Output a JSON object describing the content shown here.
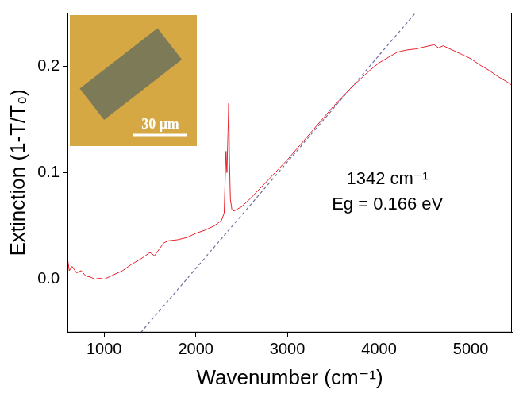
{
  "chart_data": {
    "type": "line",
    "x_label": "Wavenumber (cm⁻¹)",
    "y_label": "Extinction (1-T/T₀)",
    "xlim": [
      600,
      5450
    ],
    "ylim": [
      -0.05,
      0.25
    ],
    "xticks": [
      1000,
      2000,
      3000,
      4000,
      5000
    ],
    "yticks": [
      {
        "value": 0,
        "label": "0.0"
      },
      {
        "value": 0.1,
        "label": "0.1"
      },
      {
        "value": 0.2,
        "label": "0.2"
      }
    ],
    "grid": false,
    "annotations": [
      "1342 cm⁻¹",
      "Eg = 0.166 eV"
    ],
    "inset_scale_bar": "30 μm",
    "series": [
      {
        "color": "#e8212b",
        "line_style": "solid",
        "x": [
          600,
          620,
          650,
          700,
          750,
          800,
          850,
          900,
          950,
          1000,
          1050,
          1100,
          1200,
          1300,
          1400,
          1500,
          1550,
          1600,
          1650,
          1700,
          1800,
          1900,
          2000,
          2100,
          2200,
          2280,
          2310,
          2330,
          2340,
          2352,
          2360,
          2368,
          2378,
          2395,
          2420,
          2500,
          2600,
          2700,
          2800,
          2900,
          3000,
          3100,
          3200,
          3300,
          3400,
          3500,
          3600,
          3700,
          3800,
          3900,
          4000,
          4100,
          4200,
          4300,
          4400,
          4500,
          4600,
          4650,
          4700,
          4800,
          4900,
          5000,
          5100,
          5200,
          5300,
          5400,
          5450
        ],
        "values": [
          0.02,
          0.008,
          0.012,
          0.006,
          0.008,
          0.003,
          0.002,
          0.0,
          0.001,
          0.0,
          0.002,
          0.004,
          0.008,
          0.014,
          0.019,
          0.025,
          0.022,
          0.028,
          0.034,
          0.036,
          0.037,
          0.039,
          0.043,
          0.046,
          0.05,
          0.055,
          0.062,
          0.12,
          0.1,
          0.138,
          0.165,
          0.11,
          0.075,
          0.065,
          0.064,
          0.068,
          0.076,
          0.085,
          0.094,
          0.103,
          0.112,
          0.122,
          0.132,
          0.142,
          0.152,
          0.162,
          0.171,
          0.18,
          0.188,
          0.196,
          0.203,
          0.208,
          0.213,
          0.215,
          0.216,
          0.218,
          0.22,
          0.217,
          0.219,
          0.215,
          0.211,
          0.207,
          0.201,
          0.196,
          0.19,
          0.185,
          0.182
        ]
      },
      {
        "color": "#6f6f9f",
        "line_style": "dashed",
        "x": [
          1400,
          4400
        ],
        "values": [
          -0.05,
          0.25
        ]
      }
    ]
  }
}
